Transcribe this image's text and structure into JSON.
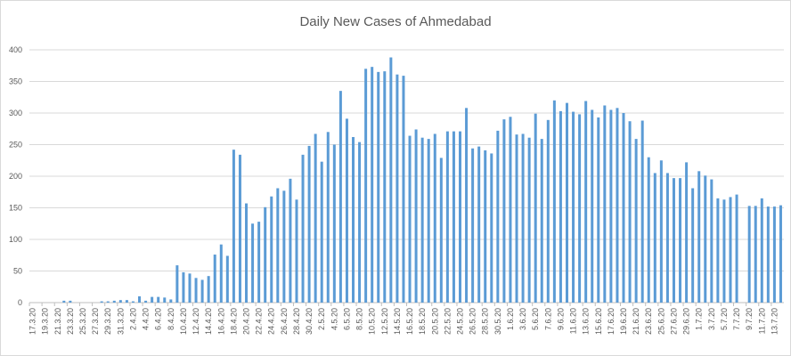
{
  "chart_data": {
    "type": "bar",
    "title": "Daily New Cases of Ahmedabad",
    "xlabel": "",
    "ylabel": "",
    "ylim": [
      0,
      400
    ],
    "yticks": [
      0,
      50,
      100,
      150,
      200,
      250,
      300,
      350,
      400
    ],
    "grid": true,
    "legend": "none",
    "bar_color": "#5b9bd5",
    "categories": [
      "17.3.20",
      "18.3.20",
      "19.3.20",
      "20.3.20",
      "21.3.20",
      "22.3.20",
      "23.3.20",
      "24.3.20",
      "25.3.20",
      "26.3.20",
      "27.3.20",
      "28.3.20",
      "29.3.20",
      "30.3.20",
      "31.3.20",
      "1.4.20",
      "2.4.20",
      "3.4.20",
      "4.4.20",
      "5.4.20",
      "6.4.20",
      "7.4.20",
      "8.4.20",
      "9.4.20",
      "10.4.20",
      "11.4.20",
      "12.4.20",
      "13.4.20",
      "14.4.20",
      "15.4.20",
      "16.4.20",
      "17.4.20",
      "18.4.20",
      "19.4.20",
      "20.4.20",
      "21.4.20",
      "22.4.20",
      "23.4.20",
      "24.4.20",
      "25.4.20",
      "26.4.20",
      "27.4.20",
      "28.4.20",
      "29.4.20",
      "30.4.20",
      "1.5.20",
      "2.5.20",
      "3.5.20",
      "4.5.20",
      "5.5.20",
      "6.5.20",
      "7.5.20",
      "8.5.20",
      "9.5.20",
      "10.5.20",
      "11.5.20",
      "12.5.20",
      "13.5.20",
      "14.5.20",
      "15.5.20",
      "16.5.20",
      "17.5.20",
      "18.5.20",
      "19.5.20",
      "20.5.20",
      "21.5.20",
      "22.5.20",
      "23.5.20",
      "24.5.20",
      "25.5.20",
      "26.5.20",
      "27.5.20",
      "28.5.20",
      "29.5.20",
      "30.5.20",
      "31.5.20",
      "1.6.20",
      "2.6.20",
      "3.6.20",
      "4.6.20",
      "5.6.20",
      "6.6.20",
      "7.6.20",
      "8.6.20",
      "9.6.20",
      "10.6.20",
      "11.6.20",
      "12.6.20",
      "13.6.20",
      "14.6.20",
      "15.6.20",
      "16.6.20",
      "17.6.20",
      "18.6.20",
      "19.6.20",
      "20.6.20",
      "21.6.20",
      "22.6.20",
      "23.6.20",
      "24.6.20",
      "25.6.20",
      "26.6.20",
      "27.6.20",
      "28.6.20",
      "29.6.20",
      "30.6.20",
      "1.7.20",
      "2.7.20",
      "3.7.20",
      "4.7.20",
      "5.7.20",
      "6.7.20",
      "7.7.20",
      "8.7.20",
      "9.7.20",
      "10.7.20",
      "11.7.20",
      "12.7.20",
      "13.7.20",
      "14.7.20"
    ],
    "values": [
      0,
      0,
      0,
      0,
      0,
      3,
      3,
      0,
      0,
      0,
      0,
      2,
      2,
      3,
      4,
      4,
      2,
      10,
      3,
      9,
      9,
      8,
      5,
      59,
      48,
      46,
      39,
      36,
      42,
      76,
      92,
      74,
      242,
      234,
      157,
      125,
      128,
      151,
      168,
      181,
      177,
      196,
      163,
      234,
      248,
      267,
      223,
      270,
      250,
      335,
      291,
      262,
      254,
      370,
      373,
      365,
      366,
      388,
      361,
      359,
      264,
      274,
      261,
      259,
      267,
      229,
      271,
      271,
      271,
      308,
      244,
      247,
      241,
      236,
      272,
      290,
      294,
      266,
      267,
      261,
      299,
      259,
      289,
      320,
      303,
      316,
      302,
      298,
      319,
      305,
      293,
      312,
      305,
      308,
      300,
      287,
      259,
      288,
      230,
      205,
      225,
      205,
      197,
      197,
      222,
      181,
      208,
      201,
      195,
      165,
      163,
      167,
      171,
      null,
      153,
      153,
      165,
      152,
      152,
      154
    ]
  }
}
